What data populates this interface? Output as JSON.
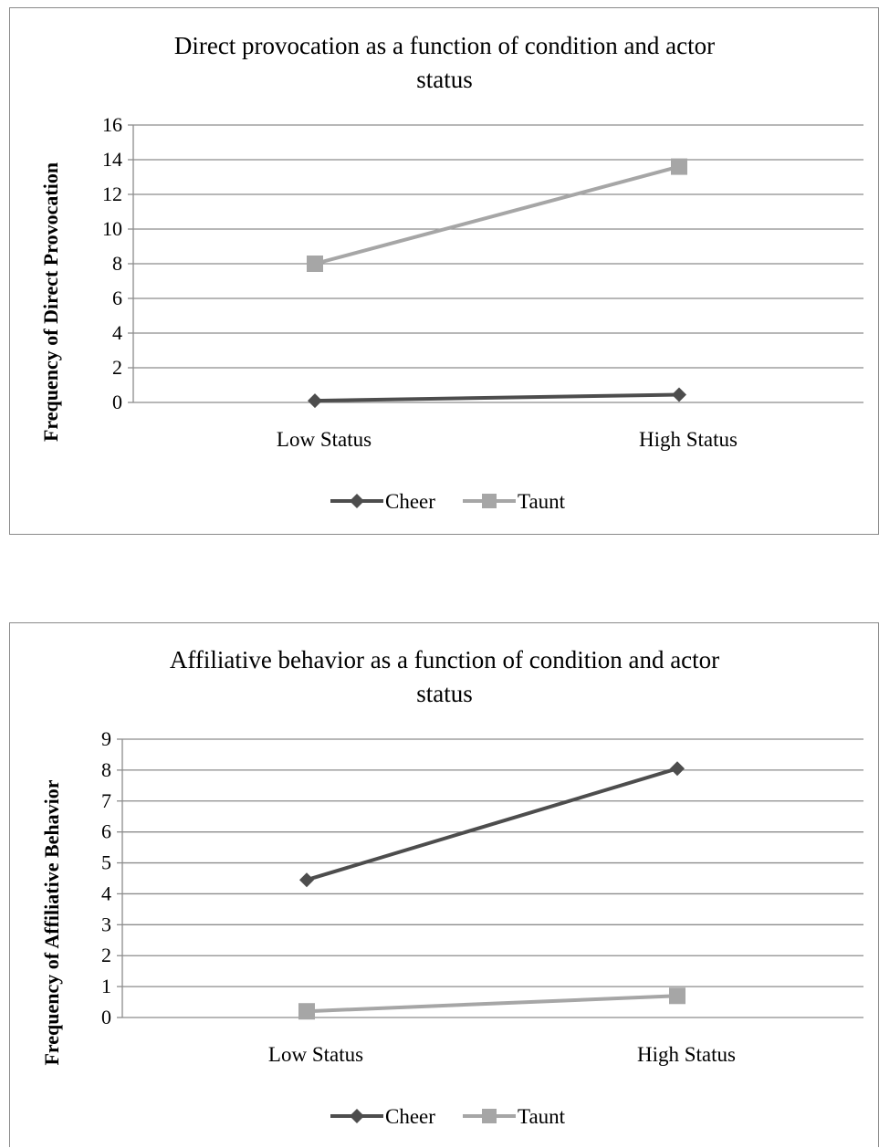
{
  "chart_data": [
    {
      "type": "line",
      "title": "Direct provocation as a function of condition and actor status",
      "title_lines": [
        "Direct provocation as a function of condition and actor",
        "status"
      ],
      "xlabel": "",
      "ylabel": "Frequency of Direct Provocation",
      "categories": [
        "Low Status",
        "High Status"
      ],
      "ylim": [
        0,
        16
      ],
      "yticks": [
        0,
        2,
        4,
        6,
        8,
        10,
        12,
        14,
        16
      ],
      "grid": true,
      "legend_position": "bottom",
      "series": [
        {
          "name": "Cheer",
          "values": [
            0.1,
            0.45
          ],
          "color": "#4d4d4d",
          "marker": "diamond"
        },
        {
          "name": "Taunt",
          "values": [
            8.0,
            13.6
          ],
          "color": "#a6a6a6",
          "marker": "square"
        }
      ]
    },
    {
      "type": "line",
      "title": "Affiliative behavior as a function of condition and actor status",
      "title_lines": [
        "Affiliative behavior as a function of condition and actor",
        "status"
      ],
      "xlabel": "",
      "ylabel": "Frequency of Affiliative Behavior",
      "categories": [
        "Low Status",
        "High Status"
      ],
      "ylim": [
        0,
        9
      ],
      "yticks": [
        0,
        1,
        2,
        3,
        4,
        5,
        6,
        7,
        8,
        9
      ],
      "grid": true,
      "legend_position": "bottom",
      "series": [
        {
          "name": "Cheer",
          "values": [
            4.45,
            8.05
          ],
          "color": "#4d4d4d",
          "marker": "diamond"
        },
        {
          "name": "Taunt",
          "values": [
            0.2,
            0.7
          ],
          "color": "#a6a6a6",
          "marker": "square"
        }
      ]
    }
  ]
}
